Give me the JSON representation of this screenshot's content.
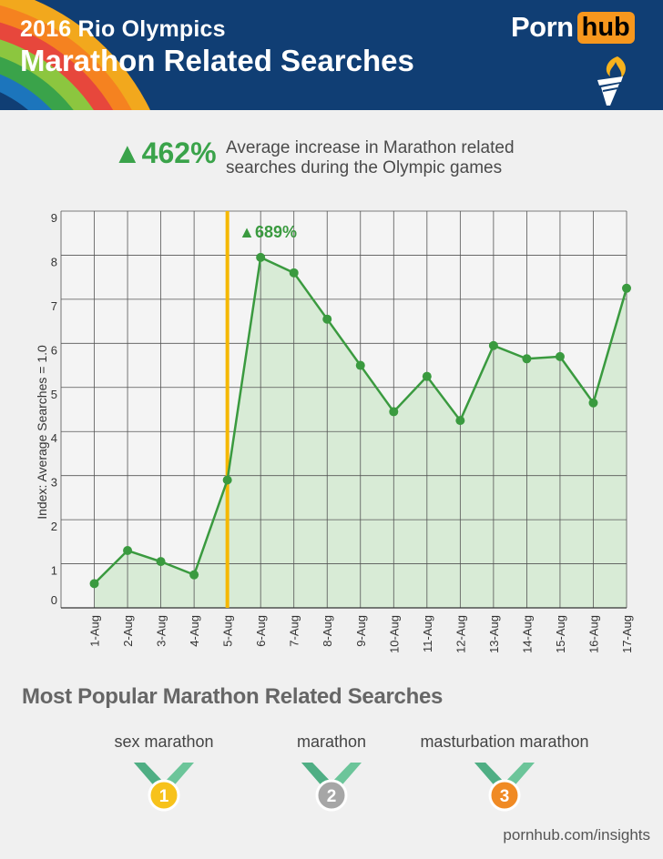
{
  "header": {
    "title_small": "2016 Rio Olympics",
    "title_big": "Marathon Related Searches",
    "logo_part1": "Porn",
    "logo_part2": "hub",
    "stripe_colors": [
      "#f2a81d",
      "#f58220",
      "#e7473c",
      "#8cc63f",
      "#3aa34a",
      "#1c75bc"
    ]
  },
  "stat": {
    "value": "▲462%",
    "text": "Average increase in Marathon related searches during the Olympic games"
  },
  "chart_data": {
    "type": "area",
    "x": [
      "1-Aug",
      "2-Aug",
      "3-Aug",
      "4-Aug",
      "5-Aug",
      "6-Aug",
      "7-Aug",
      "8-Aug",
      "9-Aug",
      "10-Aug",
      "11-Aug",
      "12-Aug",
      "13-Aug",
      "14-Aug",
      "15-Aug",
      "16-Aug",
      "17-Aug"
    ],
    "values": [
      0.55,
      1.3,
      1.05,
      0.75,
      2.9,
      7.95,
      7.6,
      6.55,
      5.5,
      4.45,
      5.25,
      4.25,
      5.95,
      5.65,
      5.7,
      4.65,
      7.25
    ],
    "ylabel": "Index: Average Searches = 1.0",
    "xlabel": "",
    "ylim": [
      0,
      9
    ],
    "yticks": [
      0,
      1,
      2,
      3,
      4,
      5,
      6,
      7,
      8,
      9
    ],
    "grid": true,
    "marker_category": "5-Aug",
    "peak_label": "▲689%",
    "colors": {
      "line": "#3a9a3f",
      "fill": "#d8ebd6",
      "marker": "#f5b800"
    }
  },
  "popular": {
    "title": "Most Popular Marathon Related Searches",
    "items": [
      {
        "label": "sex marathon",
        "rank": "1",
        "color": "#f7c21b"
      },
      {
        "label": "marathon",
        "rank": "2",
        "color": "#a6a6a6"
      },
      {
        "label": "masturbation marathon",
        "rank": "3",
        "color": "#f08a24"
      }
    ]
  },
  "footer": {
    "text": "pornhub.com/insights"
  }
}
